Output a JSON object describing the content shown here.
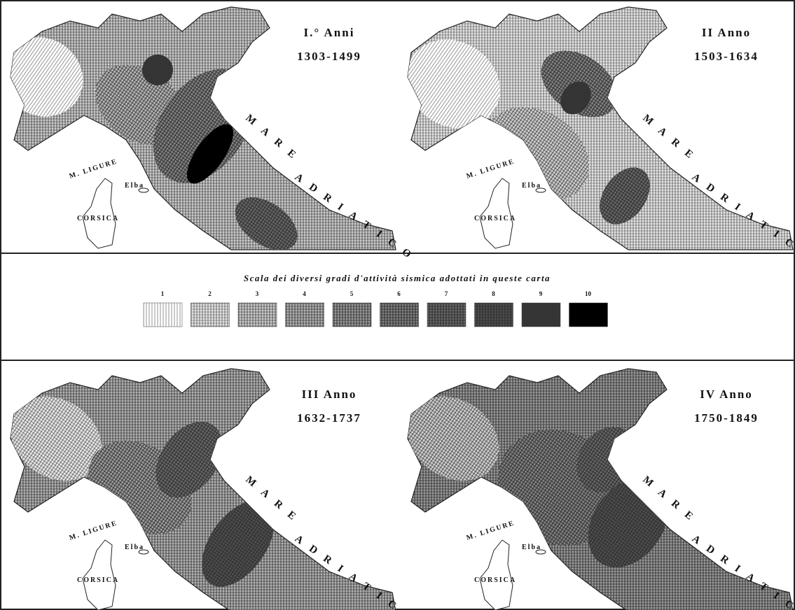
{
  "maps": [
    {
      "title": "I.° Anni",
      "years": "1303-1499"
    },
    {
      "title": "II Anno",
      "years": "1503-1634"
    },
    {
      "title": "III Anno",
      "years": "1632-1737"
    },
    {
      "title": "IV Anno",
      "years": "1750-1849"
    }
  ],
  "labels": {
    "sea_west": "M. LIGURE",
    "island": "CORSICA",
    "elba": "Elba",
    "sea_east_1": "MARE",
    "sea_east_2": "ADRIATICO"
  },
  "legend": {
    "title": "Scala dei diversi gradi d'attività sismica adottati in queste carta",
    "levels": [
      1,
      2,
      3,
      4,
      5,
      6,
      7,
      8,
      9,
      10
    ]
  }
}
